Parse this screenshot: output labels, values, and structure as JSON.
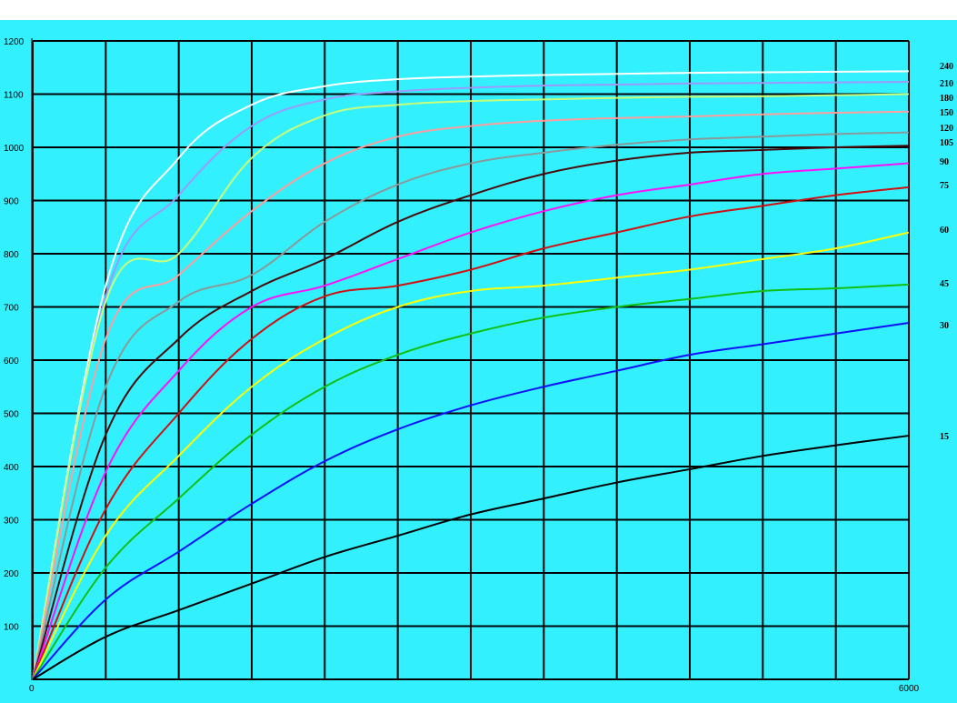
{
  "chart_data": {
    "type": "line",
    "title": "",
    "xlabel": "",
    "ylabel": "",
    "xlim": [
      0,
      6000
    ],
    "ylim": [
      0,
      1200
    ],
    "grid": true,
    "background_color": "#33f0ff",
    "x_ticks": [
      "0",
      "6000"
    ],
    "x_tick_values": [
      0,
      6000
    ],
    "y_ticks": [
      "100",
      "200",
      "300",
      "400",
      "500",
      "600",
      "700",
      "800",
      "900",
      "1000",
      "1100",
      "1200"
    ],
    "y_tick_values": [
      100,
      200,
      300,
      400,
      500,
      600,
      700,
      800,
      900,
      1000,
      1100,
      1200
    ],
    "x": [
      0,
      500,
      1000,
      1500,
      2000,
      2500,
      3000,
      3500,
      4000,
      4500,
      5000,
      5500,
      6000
    ],
    "series": [
      {
        "label": "240",
        "color": "#ffffff",
        "values": [
          0,
          740,
          980,
          1080,
          1115,
          1128,
          1133,
          1136,
          1138,
          1140,
          1141,
          1142,
          1143
        ]
      },
      {
        "label": "210",
        "color": "#9b9bff",
        "values": [
          0,
          720,
          910,
          1040,
          1090,
          1105,
          1112,
          1116,
          1118,
          1120,
          1121,
          1122,
          1123
        ]
      },
      {
        "label": "180",
        "color": "#c8ff7a",
        "values": [
          0,
          710,
          800,
          980,
          1060,
          1080,
          1087,
          1090,
          1093,
          1095,
          1096,
          1098,
          1100
        ]
      },
      {
        "label": "150",
        "color": "#ff9e9e",
        "values": [
          0,
          640,
          760,
          880,
          970,
          1020,
          1040,
          1050,
          1055,
          1058,
          1062,
          1065,
          1067
        ]
      },
      {
        "label": "120",
        "color": "#8a9a9a",
        "values": [
          0,
          550,
          710,
          760,
          860,
          930,
          970,
          990,
          1005,
          1015,
          1020,
          1025,
          1028
        ]
      },
      {
        "label": "105",
        "color": "#4a0a0a",
        "values": [
          0,
          460,
          640,
          730,
          790,
          860,
          910,
          950,
          975,
          990,
          995,
          1000,
          1003
        ]
      },
      {
        "label": "90",
        "color": "#ff10ff",
        "values": [
          0,
          390,
          580,
          700,
          740,
          790,
          840,
          880,
          910,
          930,
          950,
          960,
          970
        ]
      },
      {
        "label": "75",
        "color": "#d01010",
        "values": [
          0,
          320,
          500,
          640,
          720,
          740,
          770,
          810,
          840,
          870,
          890,
          910,
          925
        ]
      },
      {
        "label": "60",
        "color": "#ffff00",
        "values": [
          0,
          270,
          420,
          550,
          640,
          700,
          730,
          740,
          755,
          770,
          790,
          810,
          840
        ]
      },
      {
        "label": "45",
        "color": "#10c010",
        "values": [
          0,
          210,
          340,
          460,
          550,
          610,
          650,
          680,
          700,
          715,
          730,
          735,
          742
        ]
      },
      {
        "label": "30",
        "color": "#1010ff",
        "values": [
          0,
          150,
          240,
          330,
          410,
          470,
          515,
          550,
          580,
          610,
          630,
          650,
          670
        ]
      },
      {
        "label": "15",
        "color": "#000000",
        "values": [
          0,
          80,
          130,
          180,
          230,
          270,
          310,
          340,
          370,
          395,
          420,
          440,
          458
        ]
      }
    ]
  }
}
